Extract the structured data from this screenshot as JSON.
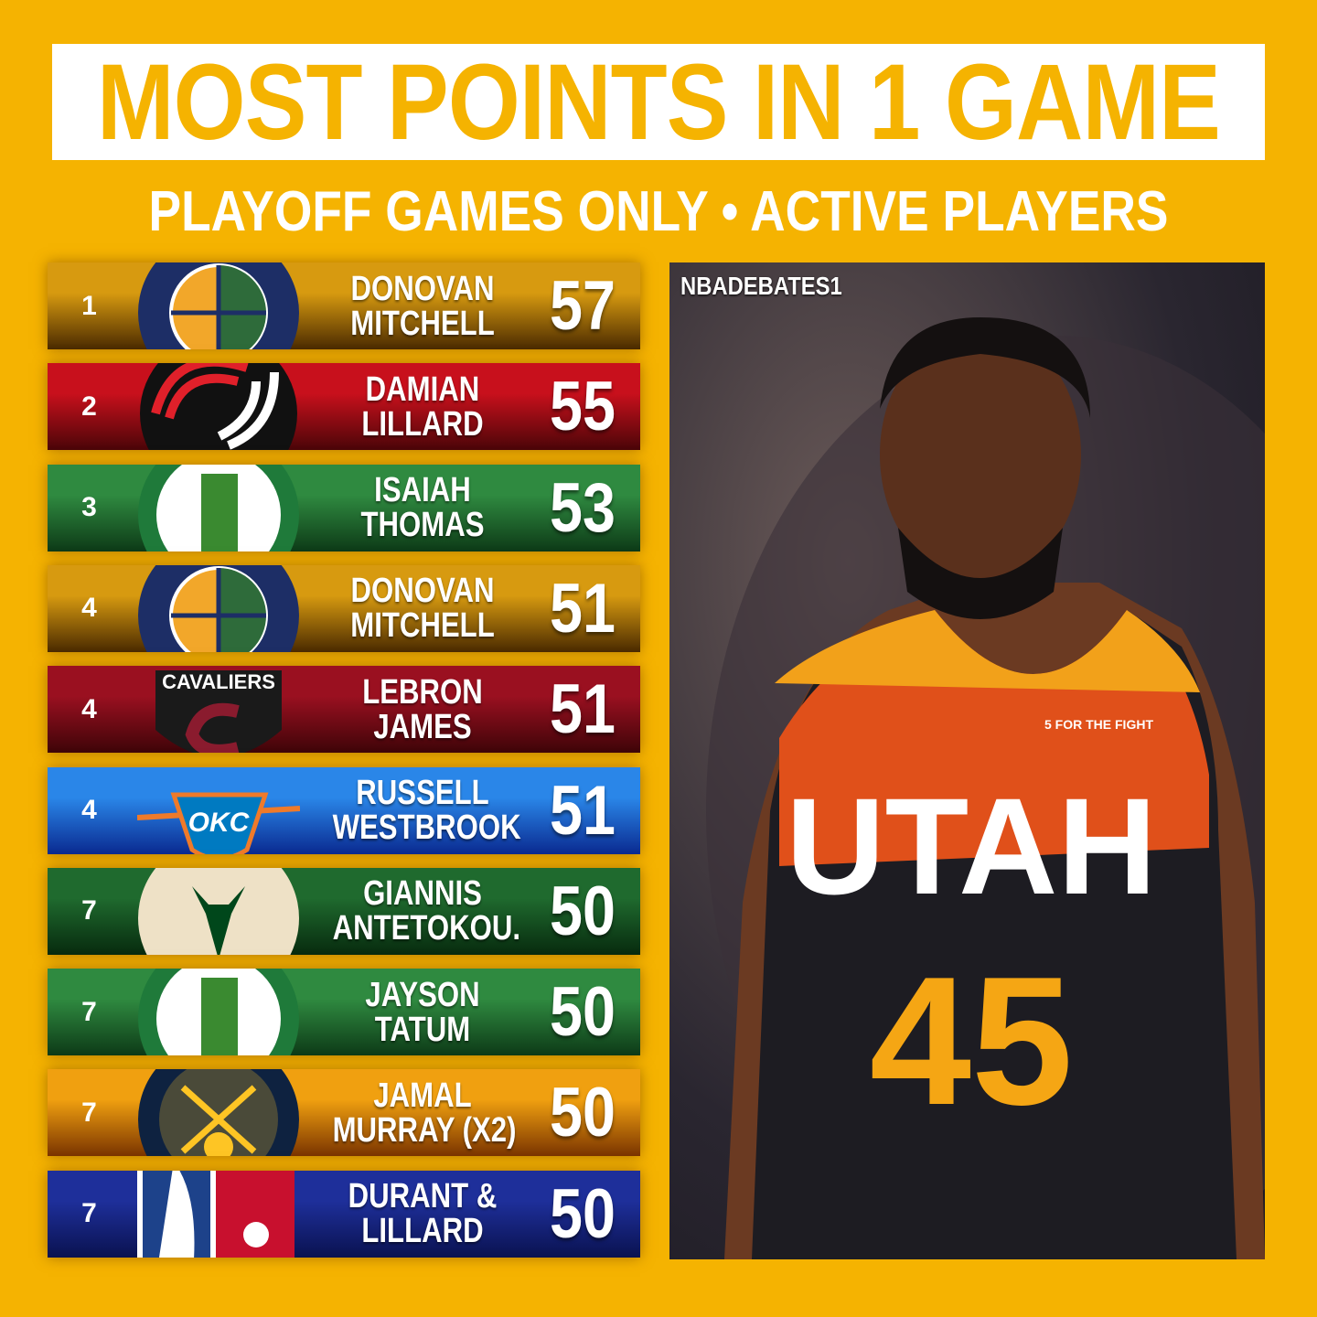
{
  "header": {
    "title": "MOST POINTS IN 1 GAME",
    "subtitle": "PLAYOFF GAMES ONLY • ACTIVE PLAYERS"
  },
  "rows": [
    {
      "rank": "1",
      "name1": "DONOVAN",
      "name2": "MITCHELL",
      "points": "57",
      "team": "jazz",
      "bg": [
        "#d79a10",
        "#4a2a00"
      ]
    },
    {
      "rank": "2",
      "name1": "DAMIAN",
      "name2": "LILLARD",
      "points": "55",
      "team": "blazers",
      "bg": [
        "#c8101c",
        "#4a0508"
      ]
    },
    {
      "rank": "3",
      "name1": "ISAIAH",
      "name2": "THOMAS",
      "points": "53",
      "team": "celtics",
      "bg": [
        "#2f8a40",
        "#0d3a17"
      ]
    },
    {
      "rank": "4",
      "name1": "DONOVAN",
      "name2": "MITCHELL",
      "points": "51",
      "team": "jazz",
      "bg": [
        "#d79a10",
        "#4a2a00"
      ]
    },
    {
      "rank": "4",
      "name1": "LEBRON",
      "name2": "JAMES",
      "points": "51",
      "team": "cavaliers",
      "bg": [
        "#9a1020",
        "#3e0408"
      ]
    },
    {
      "rank": "4",
      "name1": "RUSSELL",
      "name2": "WESTBROOK",
      "points": "51",
      "team": "thunder",
      "bg": [
        "#2a86e8",
        "#0a2a90"
      ]
    },
    {
      "rank": "7",
      "name1": "GIANNIS",
      "name2": "ANTETOKOU.",
      "points": "50",
      "team": "bucks",
      "bg": [
        "#1f6a2e",
        "#072a0e"
      ]
    },
    {
      "rank": "7",
      "name1": "JAYSON",
      "name2": "TATUM",
      "points": "50",
      "team": "celtics",
      "bg": [
        "#2f8a40",
        "#0d3a17"
      ]
    },
    {
      "rank": "7",
      "name1": "JAMAL",
      "name2": "MURRAY (X2)",
      "points": "50",
      "team": "nuggets",
      "bg": [
        "#f0a010",
        "#7a3400"
      ]
    },
    {
      "rank": "7",
      "name1": "DURANT &",
      "name2": "LILLARD",
      "points": "50",
      "team": "nba",
      "bg": [
        "#1e2f9a",
        "#0a1250"
      ]
    }
  ],
  "photo": {
    "watermark": "NBADEBATES1",
    "jersey_text": "UTAH",
    "jersey_number": "45",
    "patch": "5 FOR THE FIGHT"
  },
  "colors": {
    "background": "#F5B301",
    "title": "#F5B301"
  }
}
